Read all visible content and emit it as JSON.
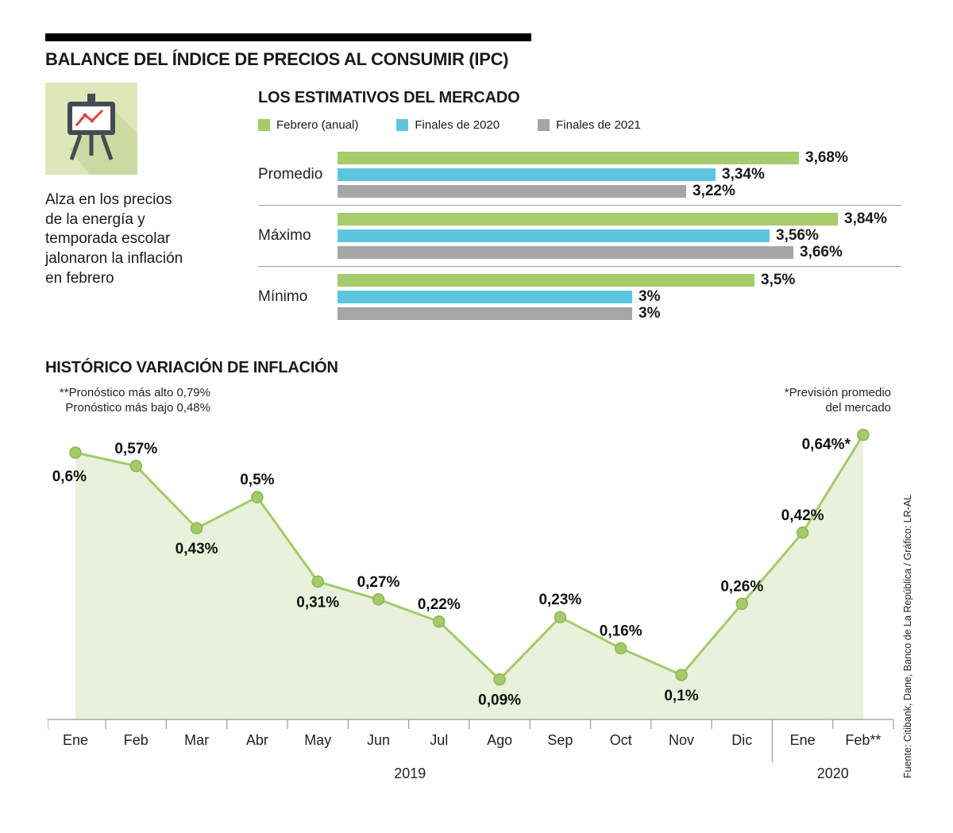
{
  "header": {
    "title": "BALANCE DEL ÍNDICE DE PRECIOS AL CONSUMIR (IPC)"
  },
  "intro": {
    "icon": "presentation-chart-icon",
    "description": "Alza en los precios\nde la energía y\ntemporada escolar\njalonaron la inflación\nen febrero"
  },
  "source": {
    "text": "Fuente: Citibank, Dane, Banco de La República / Gráfico: LR-AL"
  },
  "colors": {
    "green": "#a6cc6b",
    "cyan": "#5ec5de",
    "gray": "#a6a6a6",
    "area_fill": "#e9f1dc",
    "line": "#a3cb67",
    "axis": "#9b9b9b"
  },
  "chart_data": [
    {
      "type": "bar",
      "title": "LOS ESTIMATIVOS DEL MERCADO",
      "orientation": "horizontal",
      "legend_position": "top",
      "categories": [
        "Promedio",
        "Máximo",
        "Mínimo"
      ],
      "series": [
        {
          "name": "Febrero (anual)",
          "color": "#a6cc6b",
          "values": [
            3.68,
            3.84,
            3.5
          ],
          "labels": [
            "3,68%",
            "3,84%",
            "3,5%"
          ]
        },
        {
          "name": "Finales de 2020",
          "color": "#5ec5de",
          "values": [
            3.34,
            3.56,
            3.0
          ],
          "labels": [
            "3,34%",
            "3,56%",
            "3%"
          ]
        },
        {
          "name": "Finales de 2021",
          "color": "#a6a6a6",
          "values": [
            3.22,
            3.66,
            3.0
          ],
          "labels": [
            "3,22%",
            "3,66%",
            "3%"
          ]
        }
      ],
      "xlim": [
        1.8,
        3.84
      ]
    },
    {
      "type": "area",
      "title": "HISTÓRICO VARIACIÓN DE INFLACIÓN",
      "categories": [
        "Ene",
        "Feb",
        "Mar",
        "Abr",
        "May",
        "Jun",
        "Jul",
        "Ago",
        "Sep",
        "Oct",
        "Nov",
        "Dic",
        "Ene",
        "Feb**"
      ],
      "values": [
        0.6,
        0.57,
        0.43,
        0.5,
        0.31,
        0.27,
        0.22,
        0.09,
        0.23,
        0.16,
        0.1,
        0.26,
        0.42,
        0.64
      ],
      "labels": [
        "0,6%",
        "0,57%",
        "0,43%",
        "0,5%",
        "0,31%",
        "0,27%",
        "0,22%",
        "0,09%",
        "0,23%",
        "0,16%",
        "0,1%",
        "0,26%",
        "0,42%",
        "0,64%*"
      ],
      "label_placement": [
        "below-left",
        "above",
        "below",
        "above",
        "below",
        "above",
        "above",
        "below",
        "above",
        "above",
        "below",
        "above",
        "above",
        "left"
      ],
      "year_groups": [
        {
          "label": "2019",
          "span": 12
        },
        {
          "label": "2020",
          "span": 2
        }
      ],
      "ylim": [
        0,
        0.7
      ],
      "annotations": {
        "top_left": "**Pronóstico más alto 0,79%\nPronóstico más bajo 0,48%",
        "top_right": "*Previsión promedio\ndel mercado"
      }
    }
  ]
}
